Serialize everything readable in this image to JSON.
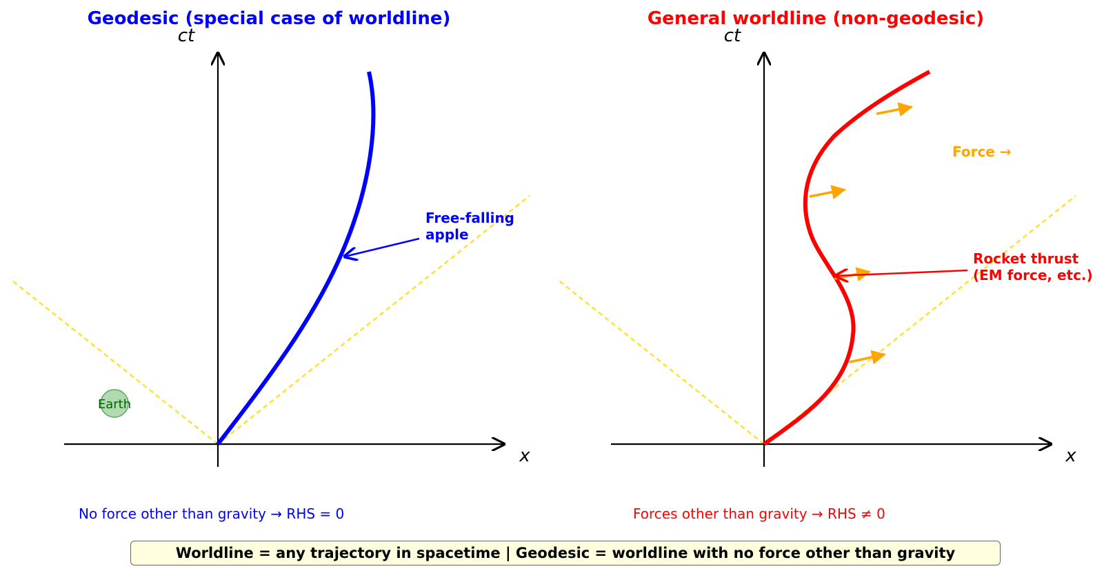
{
  "left_panel": {
    "title": "Geodesic (special case of worldline)",
    "title_color": "#0000ff",
    "y_axis_label": "ct",
    "x_axis_label": "x",
    "curve_color": "#0000ff",
    "annotation": [
      "Free-falling",
      "apple"
    ],
    "earth_label": "Earth",
    "caption": "No force other than gravity → RHS = 0"
  },
  "right_panel": {
    "title": "General worldline (non-geodesic)",
    "title_color": "#ff0000",
    "y_axis_label": "ct",
    "x_axis_label": "x",
    "curve_color": "#ff0000",
    "force_label": "Force →",
    "force_color": "#ffa500",
    "annotation": [
      "Rocket thrust",
      "(EM force, etc.)"
    ],
    "caption": "Forces other than gravity → RHS ≠ 0"
  },
  "light_cone_color": "#ffe033",
  "banner": "Worldline = any trajectory in spacetime  |  Geodesic = worldline with no force other than gravity"
}
